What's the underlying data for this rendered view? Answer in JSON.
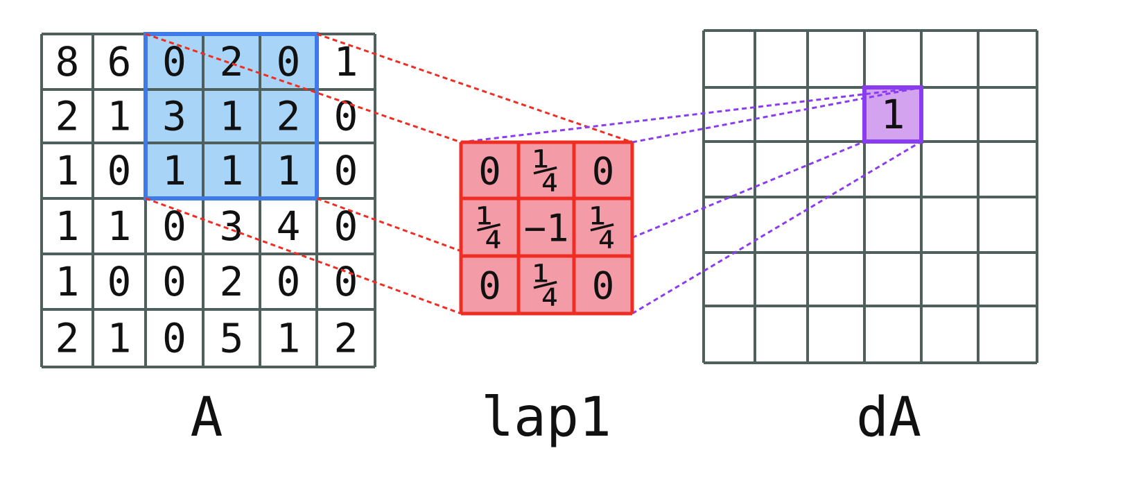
{
  "matrix_a": {
    "label": "A",
    "cells": [
      [
        "8",
        "6",
        "0",
        "2",
        "0",
        "1"
      ],
      [
        "2",
        "1",
        "3",
        "1",
        "2",
        "0"
      ],
      [
        "1",
        "0",
        "1",
        "1",
        "1",
        "0"
      ],
      [
        "1",
        "1",
        "0",
        "3",
        "4",
        "0"
      ],
      [
        "1",
        "0",
        "0",
        "2",
        "0",
        "0"
      ],
      [
        "2",
        "1",
        "0",
        "5",
        "1",
        "2"
      ]
    ],
    "highlight": {
      "row_start": 0,
      "row_end": 2,
      "col_start": 2,
      "col_end": 4
    }
  },
  "kernel": {
    "label": "lap1",
    "cells": [
      [
        "0",
        "¼",
        "0"
      ],
      [
        "¼",
        "−1",
        "¼"
      ],
      [
        "0",
        "¼",
        "0"
      ]
    ]
  },
  "matrix_da": {
    "label": "dA",
    "rows": 6,
    "cols": 6,
    "output_cell": {
      "row": 1,
      "col": 3,
      "value": "1"
    }
  },
  "colors": {
    "grid_line": "#4f5f5c",
    "highlight_fill": "#a8d4f7",
    "highlight_border": "#3f7be8",
    "kernel_fill": "#f39ba6",
    "kernel_border": "#f02d22",
    "output_fill": "#d4a3f0",
    "output_border": "#8a3cf0",
    "red_dash": "#f02d22",
    "purple_dash": "#8a3cf0"
  }
}
